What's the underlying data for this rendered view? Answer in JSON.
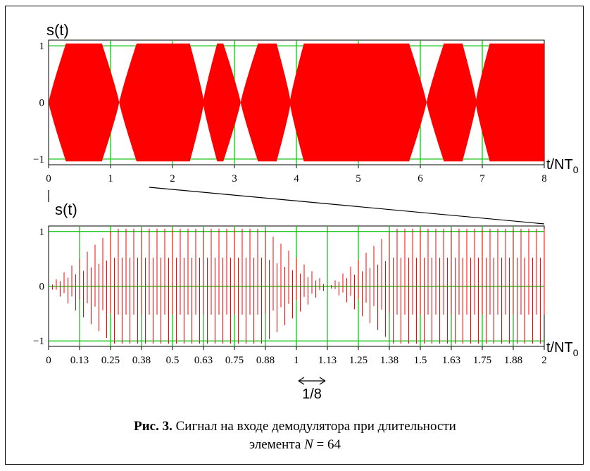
{
  "figure": {
    "caption_label": "Рис. 3.",
    "caption_text_line1": "Сигнал на входе демодулятора при длительности",
    "caption_text_line2_prefix": "элемента ",
    "caption_var": "N",
    "caption_text_line2_suffix": " = 64",
    "annotation": "1/8"
  },
  "colors": {
    "signal": "#ff0000",
    "grid": "#00c000",
    "axis": "#000000"
  },
  "chart_data": [
    {
      "type": "line",
      "ylabel": "s(t)",
      "xlabel_main": "t/NT",
      "xlabel_sub": "0",
      "xlim": [
        0,
        8
      ],
      "ylim": [
        -1.1,
        1.1
      ],
      "x_ticks": [
        "0",
        "1",
        "2",
        "3",
        "4",
        "5",
        "6",
        "7",
        "8"
      ],
      "y_ticks": [
        "1",
        "0",
        "−1"
      ],
      "grid": true,
      "description": "dense modulated carrier, envelope amplitude ~1 with dips to 0 at symbol transitions",
      "envelope_zero_points": [
        0,
        1.14,
        3.1,
        6.1
      ],
      "envelope_dip_points": [
        2.5,
        3.9,
        6.9
      ]
    },
    {
      "type": "line",
      "ylabel": "s(t)",
      "xlabel_main": "t/NT",
      "xlabel_sub": "0",
      "xlim": [
        0,
        2
      ],
      "ylim": [
        -1.1,
        1.1
      ],
      "x_ticks": [
        "0",
        "0.13",
        "0.25",
        "0.38",
        "0.5",
        "0.63",
        "0.75",
        "0.88",
        "1",
        "1.13",
        "1.25",
        "1.38",
        "1.5",
        "1.63",
        "1.75",
        "1.88",
        "2"
      ],
      "y_ticks": [
        "1",
        "0",
        "−1"
      ],
      "grid": true,
      "envelope_zero_points": [
        0,
        1.13
      ]
    }
  ]
}
